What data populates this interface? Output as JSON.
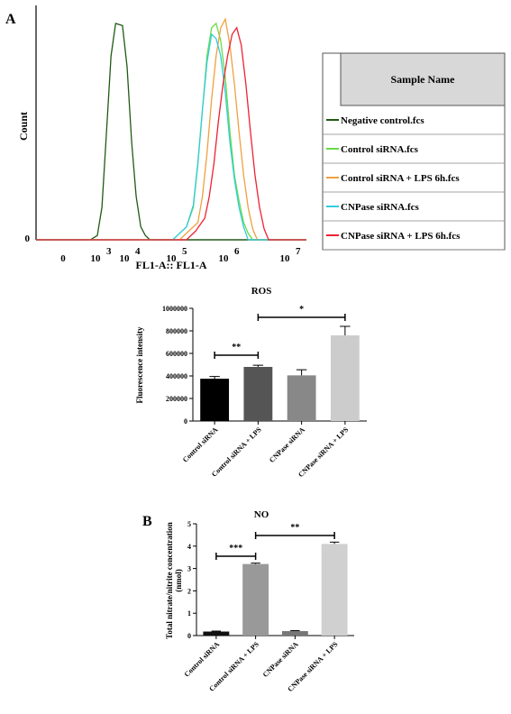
{
  "chart_data": [
    {
      "type": "line",
      "panel_label": "A",
      "ylabel": "Count",
      "xlabel": "FL1-A:: FL1-A",
      "y_tick_labels": [
        "0"
      ],
      "x_tick_labels": [
        {
          "base": "0",
          "exp": ""
        },
        {
          "base": "10",
          "exp": "3"
        },
        {
          "base": "10",
          "exp": "4"
        },
        {
          "base": "10",
          "exp": "5"
        },
        {
          "base": "10",
          "exp": "6"
        },
        {
          "base": "10",
          "exp": "7"
        }
      ],
      "x_scale": "log",
      "legend_header": "Sample Name",
      "series": [
        {
          "name": "Negative control.fcs",
          "color": "#1f5a14",
          "x": [
            2.6,
            2.75,
            2.85,
            2.95,
            3.05,
            3.15,
            3.3,
            3.4,
            3.5,
            3.6,
            3.7,
            3.8,
            3.9
          ],
          "y": [
            0,
            0.02,
            0.15,
            0.5,
            0.85,
            1.0,
            0.99,
            0.8,
            0.45,
            0.2,
            0.06,
            0.02,
            0
          ]
        },
        {
          "name": "Control siRNA.fcs",
          "color": "#66dd44",
          "x": [
            4.4,
            4.55,
            4.7,
            4.85,
            4.95,
            5.05,
            5.15,
            5.25,
            5.35,
            5.45,
            5.55,
            5.65,
            5.75,
            5.85,
            5.95,
            6.05,
            6.15
          ],
          "y": [
            0,
            0.03,
            0.06,
            0.15,
            0.35,
            0.6,
            0.85,
            0.98,
            1.0,
            0.92,
            0.75,
            0.5,
            0.3,
            0.18,
            0.08,
            0.03,
            0
          ]
        },
        {
          "name": "Control siRNA + LPS  6h.fcs",
          "color": "#f0a040",
          "x": [
            4.55,
            4.75,
            4.95,
            5.05,
            5.15,
            5.25,
            5.35,
            5.45,
            5.55,
            5.65,
            5.75,
            5.85,
            5.95,
            6.05,
            6.15,
            6.25
          ],
          "y": [
            0,
            0.04,
            0.08,
            0.2,
            0.4,
            0.65,
            0.85,
            0.98,
            1.02,
            0.9,
            0.72,
            0.5,
            0.3,
            0.15,
            0.05,
            0
          ]
        },
        {
          "name": "CNPase siRNA.fcs",
          "color": "#33ccdd",
          "x": [
            4.4,
            4.55,
            4.7,
            4.85,
            4.95,
            5.05,
            5.15,
            5.25,
            5.35,
            5.45,
            5.55,
            5.65,
            5.75,
            5.85,
            5.95,
            6.05
          ],
          "y": [
            0,
            0.03,
            0.06,
            0.16,
            0.36,
            0.6,
            0.82,
            0.95,
            0.93,
            0.85,
            0.68,
            0.45,
            0.28,
            0.15,
            0.06,
            0
          ]
        },
        {
          "name": "CNPase siRNA +  LPS 6h.fcs",
          "color": "#ee2233",
          "x": [
            4.7,
            4.9,
            5.1,
            5.2,
            5.3,
            5.4,
            5.5,
            5.6,
            5.7,
            5.8,
            5.9,
            6.0,
            6.1,
            6.2,
            6.3,
            6.4,
            6.5
          ],
          "y": [
            0,
            0.04,
            0.1,
            0.2,
            0.35,
            0.55,
            0.72,
            0.85,
            0.95,
            0.98,
            0.9,
            0.72,
            0.5,
            0.3,
            0.15,
            0.05,
            0
          ]
        }
      ]
    },
    {
      "type": "bar",
      "title": "ROS",
      "ylabel": "Fluorescence intensity",
      "categories": [
        "Control  siRNA",
        "Control siRNA + LPS",
        "CNPase  siRNA",
        "CNPase  siRNA   + LPS"
      ],
      "values": [
        375000,
        480000,
        405000,
        760000
      ],
      "errors": [
        20000,
        15000,
        50000,
        80000
      ],
      "colors": [
        "#000000",
        "#555555",
        "#888888",
        "#cccccc"
      ],
      "ylim": [
        0,
        1000000
      ],
      "y_ticks": [
        0,
        200000,
        400000,
        600000,
        800000,
        1000000
      ],
      "significance": [
        {
          "from": 0,
          "to": 1,
          "label": "**"
        },
        {
          "from": 1,
          "to": 3,
          "label": "*"
        }
      ]
    },
    {
      "type": "bar",
      "panel_label": "B",
      "title": "NO",
      "ylabel": "Total nitrate/nitrite concentration\n(nmol)",
      "categories": [
        "Control  siRNA",
        "Control siRNA + LPS",
        "CNPase  siRNA",
        "CNPase siRNA  + LPS"
      ],
      "values": [
        0.18,
        3.2,
        0.2,
        4.1
      ],
      "errors": [
        0.02,
        0.04,
        0.02,
        0.08
      ],
      "colors": [
        "#111111",
        "#999999",
        "#777777",
        "#d0d0d0"
      ],
      "ylim": [
        0,
        5
      ],
      "y_ticks": [
        0,
        1,
        2,
        3,
        4,
        5
      ],
      "significance": [
        {
          "from": 0,
          "to": 1,
          "label": "***"
        },
        {
          "from": 1,
          "to": 3,
          "label": "**"
        }
      ]
    }
  ]
}
